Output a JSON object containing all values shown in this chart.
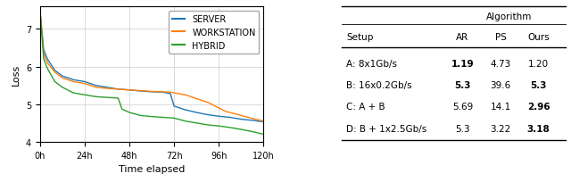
{
  "xlabel": "Time elapsed",
  "ylabel": "Loss",
  "ylim": [
    4,
    7.6
  ],
  "xtick_labels": [
    "0h",
    "24h",
    "48h",
    "72h",
    "96h",
    "120h"
  ],
  "xtick_positions": [
    0,
    24,
    48,
    72,
    96,
    120
  ],
  "lines": {
    "SERVER": {
      "color": "#1f77b4",
      "x": [
        0,
        2,
        4,
        8,
        12,
        18,
        24,
        30,
        36,
        42,
        48,
        54,
        60,
        66,
        70,
        72,
        78,
        84,
        90,
        96,
        102,
        108,
        114,
        120
      ],
      "y": [
        7.5,
        6.45,
        6.2,
        5.9,
        5.75,
        5.65,
        5.6,
        5.5,
        5.45,
        5.4,
        5.38,
        5.35,
        5.33,
        5.32,
        5.28,
        4.95,
        4.85,
        4.78,
        4.72,
        4.68,
        4.65,
        4.6,
        4.57,
        4.53
      ]
    },
    "WORKSTATION": {
      "color": "#ff7f0e",
      "x": [
        0,
        2,
        4,
        8,
        12,
        18,
        24,
        30,
        36,
        42,
        48,
        54,
        60,
        66,
        70,
        72,
        78,
        84,
        90,
        96,
        100,
        102,
        108,
        114,
        120
      ],
      "y": [
        7.5,
        6.35,
        6.1,
        5.85,
        5.7,
        5.6,
        5.55,
        5.45,
        5.42,
        5.4,
        5.38,
        5.36,
        5.34,
        5.33,
        5.32,
        5.3,
        5.25,
        5.15,
        5.05,
        4.9,
        4.8,
        4.78,
        4.7,
        4.62,
        4.55
      ]
    },
    "HYBRID": {
      "color": "#2ca02c",
      "x": [
        0,
        2,
        4,
        8,
        12,
        18,
        24,
        30,
        36,
        40,
        42,
        44,
        48,
        54,
        60,
        66,
        72,
        78,
        84,
        90,
        96,
        102,
        108,
        114,
        120
      ],
      "y": [
        7.5,
        6.2,
        5.95,
        5.6,
        5.45,
        5.3,
        5.25,
        5.2,
        5.18,
        5.17,
        5.16,
        4.87,
        4.78,
        4.7,
        4.67,
        4.65,
        4.63,
        4.55,
        4.5,
        4.45,
        4.42,
        4.38,
        4.33,
        4.27,
        4.2
      ]
    }
  },
  "table": {
    "rows": [
      {
        "setup": "A: 8x1Gb/s",
        "ar": "1.19",
        "ps": "4.73",
        "ours": "1.20",
        "ar_bold": true,
        "ps_bold": false,
        "ours_bold": false
      },
      {
        "setup": "B: 16x0.2Gb/s",
        "ar": "5.3",
        "ps": "39.6",
        "ours": "5.3",
        "ar_bold": true,
        "ps_bold": false,
        "ours_bold": true
      },
      {
        "setup": "C: A + B",
        "ar": "5.69",
        "ps": "14.1",
        "ours": "2.96",
        "ar_bold": false,
        "ps_bold": false,
        "ours_bold": true
      },
      {
        "setup": "D: B + 1x2.5Gb/s",
        "ar": "5.3",
        "ps": "3.22",
        "ours": "3.18",
        "ar_bold": false,
        "ps_bold": false,
        "ours_bold": true
      }
    ]
  },
  "background_color": "#ffffff",
  "grid_color": "#cccccc",
  "legend_fontsize": 7,
  "axis_fontsize": 8,
  "tick_fontsize": 7,
  "table_fontsize": 7.5
}
